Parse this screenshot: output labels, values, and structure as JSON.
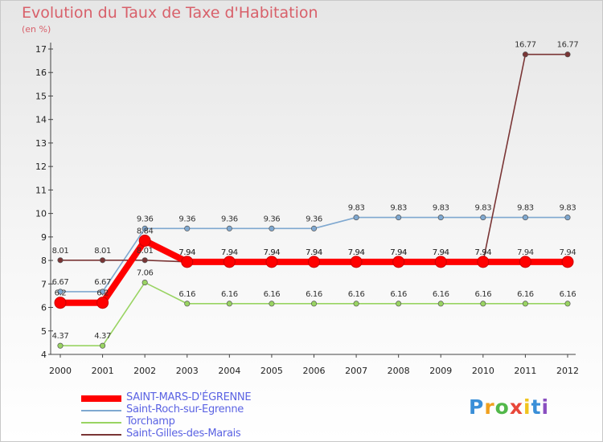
{
  "title": "Evolution du Taux de Taxe d'Habitation",
  "subtitle": "(en %)",
  "logo": {
    "letters": [
      "P",
      "r",
      "o",
      "x",
      "i",
      "t",
      "i"
    ],
    "colors": [
      "#3a8fd8",
      "#f0a01e",
      "#52b84a",
      "#e8473a",
      "#f0c41e",
      "#3a8fd8",
      "#8a4fc0"
    ]
  },
  "chart_data": {
    "type": "line",
    "title": "Evolution du Taux de Taxe d'Habitation",
    "ylabel": "(en %)",
    "xlabel": "",
    "x": [
      "2000",
      "2001",
      "2002",
      "2003",
      "2004",
      "2005",
      "2006",
      "2007",
      "2008",
      "2009",
      "2010",
      "2011",
      "2012"
    ],
    "yticks": [
      "4",
      "5",
      "6",
      "7",
      "8",
      "9",
      "10",
      "11",
      "12",
      "13",
      "14",
      "15",
      "16",
      "17"
    ],
    "ylim": [
      4,
      17
    ],
    "grid": false,
    "legend_position": "bottom-left",
    "series": [
      {
        "name": "SAINT-MARS-D'ÉGRENNE",
        "color": "#ff0000",
        "values": [
          6.2,
          6.2,
          8.84,
          7.94,
          7.94,
          7.94,
          7.94,
          7.94,
          7.94,
          7.94,
          7.94,
          7.94,
          7.94
        ],
        "labels": [
          "6.2",
          "6.2",
          "8.84",
          "7.94",
          "7.94",
          "7.94",
          "7.94",
          "7.94",
          "7.94",
          "7.94",
          "7.94",
          "7.94",
          "7.94"
        ]
      },
      {
        "name": "Saint-Roch-sur-Egrenne",
        "color": "#7fa8d0",
        "values": [
          6.67,
          6.67,
          9.36,
          9.36,
          9.36,
          9.36,
          9.36,
          9.83,
          9.83,
          9.83,
          9.83,
          9.83,
          9.83
        ],
        "labels": [
          "6.67",
          "6.67",
          "9.36",
          "9.36",
          "9.36",
          "9.36",
          "9.36",
          "9.83",
          "9.83",
          "9.83",
          "9.83",
          "9.83",
          "9.83"
        ]
      },
      {
        "name": "Torchamp",
        "color": "#99d462",
        "values": [
          4.37,
          4.37,
          7.06,
          6.16,
          6.16,
          6.16,
          6.16,
          6.16,
          6.16,
          6.16,
          6.16,
          6.16,
          6.16
        ],
        "labels": [
          "4.37",
          "4.37",
          "7.06",
          "6.16",
          "6.16",
          "6.16",
          "6.16",
          "6.16",
          "6.16",
          "6.16",
          "6.16",
          "6.16",
          "6.16"
        ]
      },
      {
        "name": "Saint-Gilles-des-Marais",
        "color": "#7a3535",
        "values": [
          8.01,
          8.01,
          8.01,
          7.94,
          7.94,
          7.94,
          7.94,
          7.94,
          7.94,
          7.94,
          7.94,
          16.77,
          16.77
        ],
        "labels": [
          "8.01",
          "8.01",
          "8.01",
          "7.94",
          "7.94",
          "7.94",
          "7.94",
          "7.94",
          "7.94",
          "7.94",
          "7.94",
          "16.77",
          "16.77"
        ]
      }
    ]
  }
}
